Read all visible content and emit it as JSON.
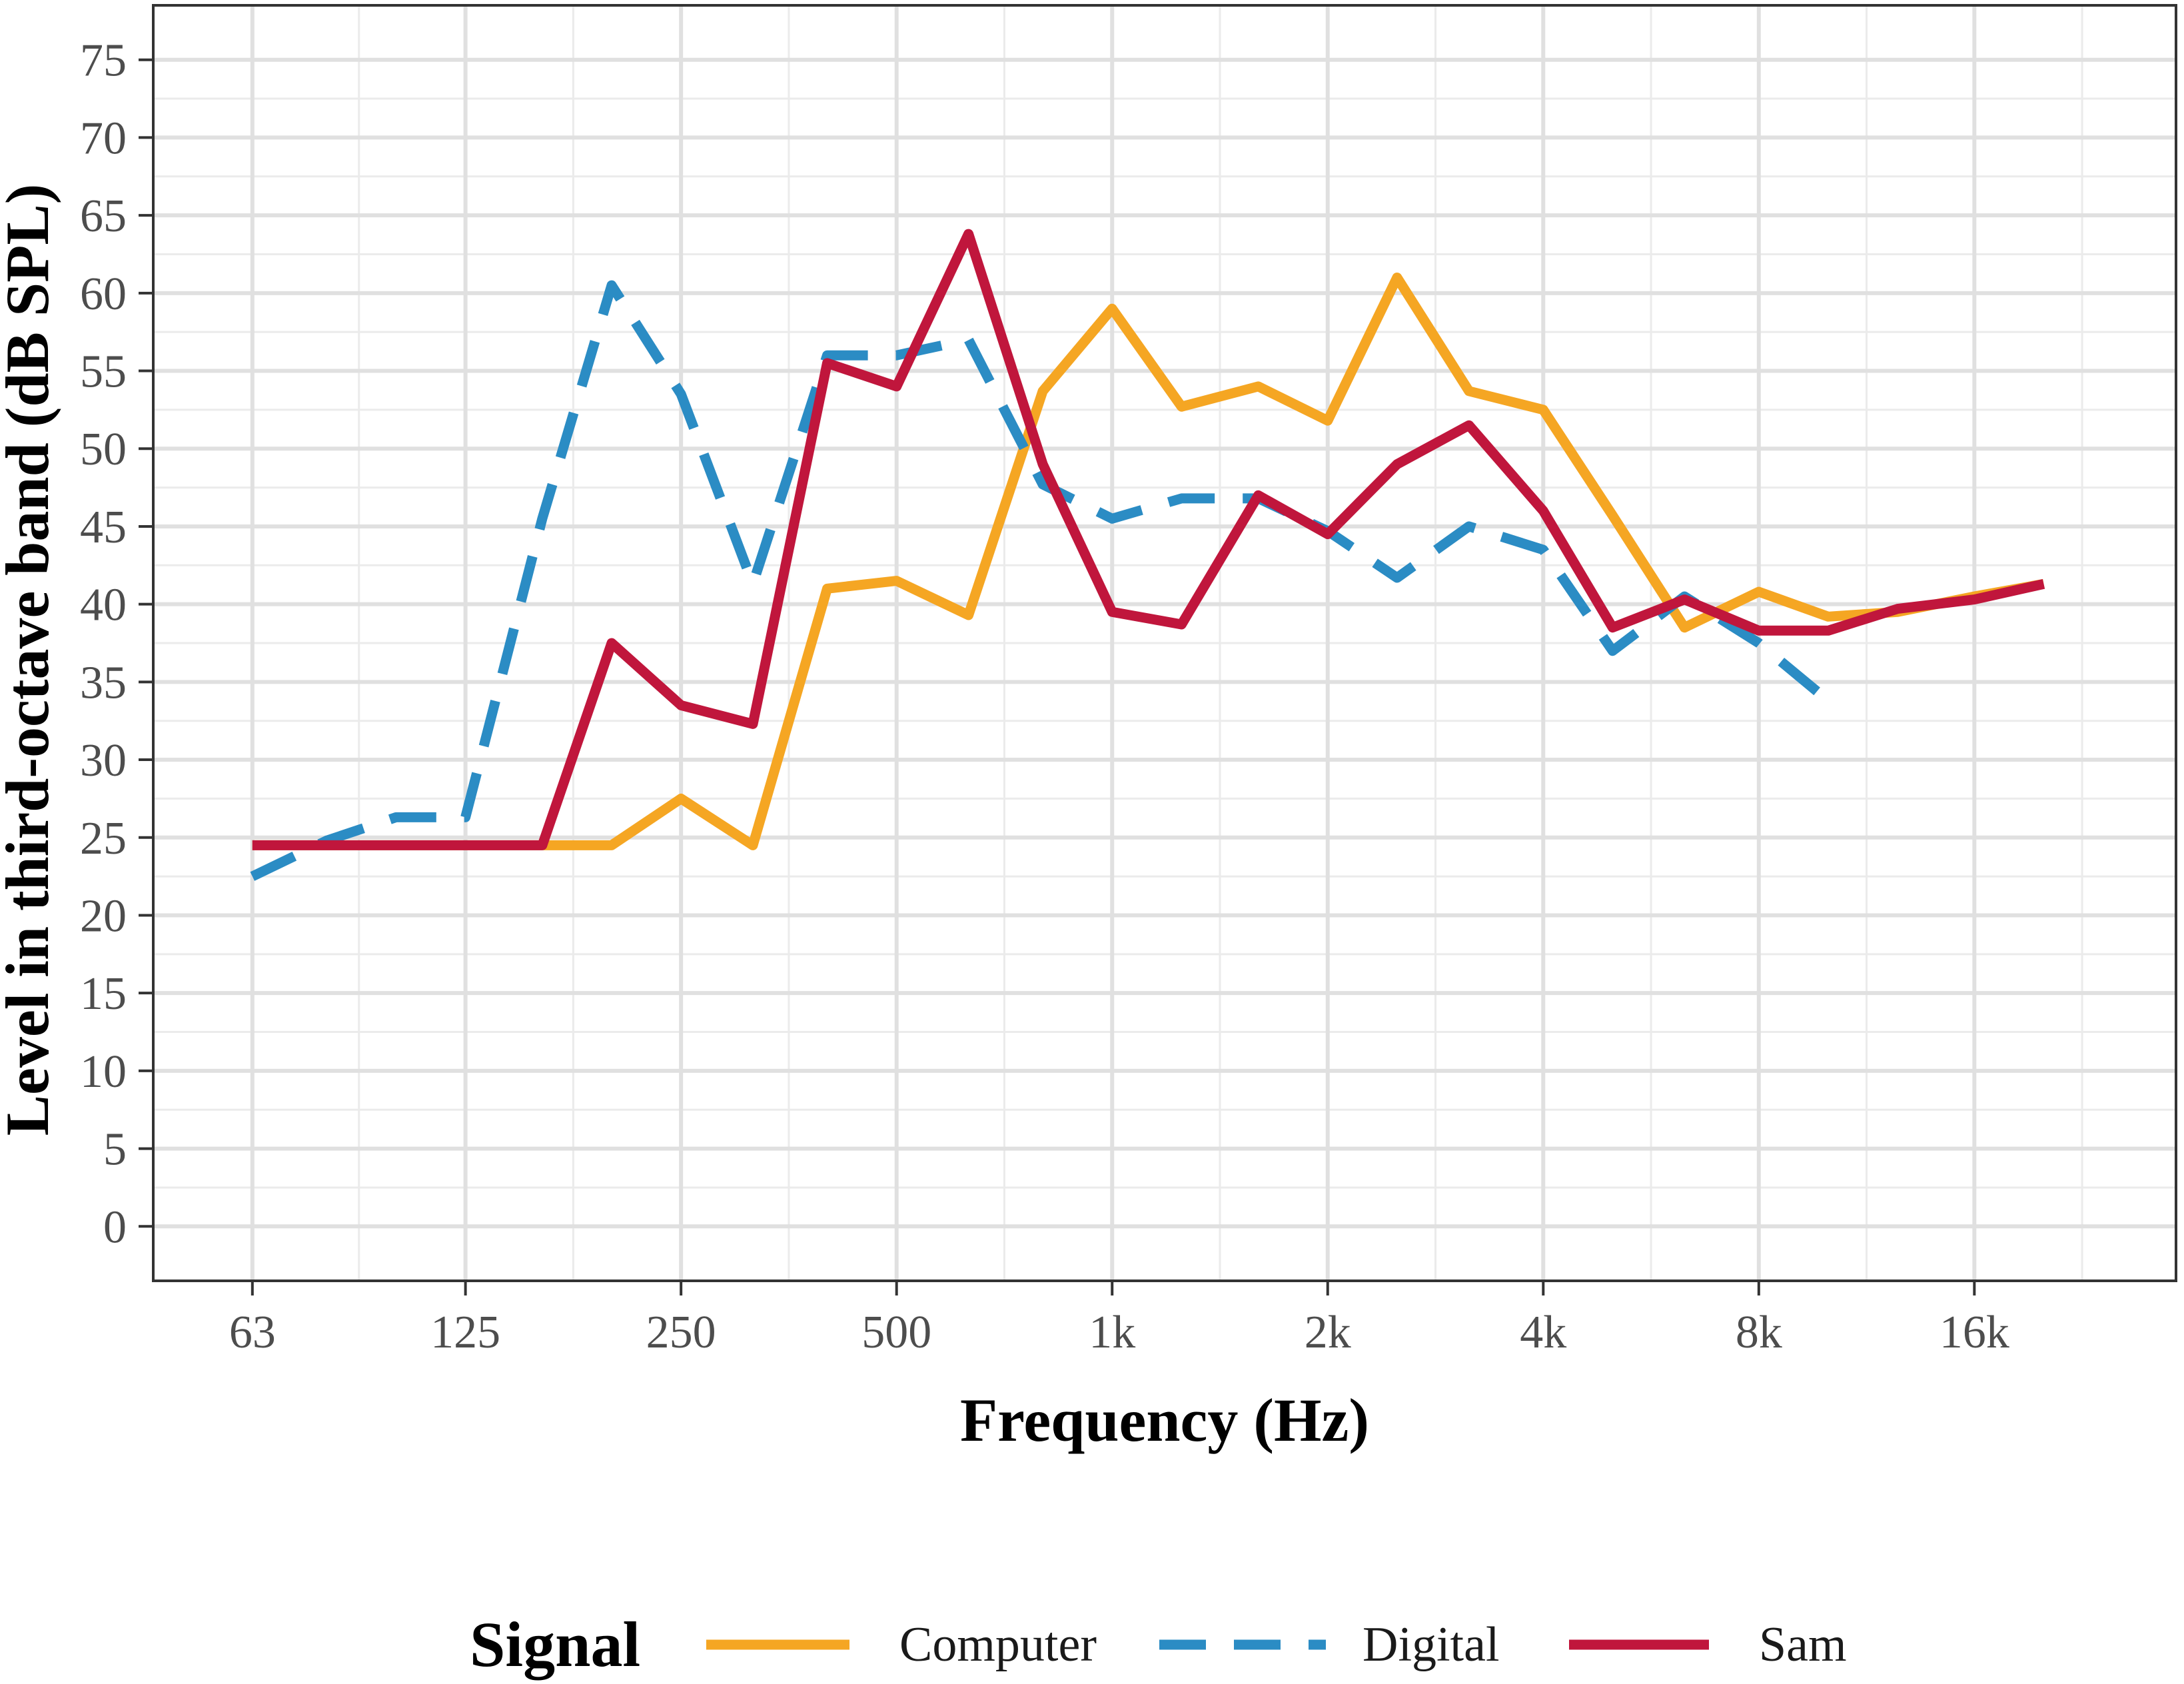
{
  "chart_data": {
    "type": "line",
    "xlabel": "Frequency (Hz)",
    "ylabel": "Level in third-octave band (dB SPL)",
    "x_scale": "log2",
    "x": [
      63,
      80,
      100,
      125,
      160,
      200,
      250,
      315,
      400,
      500,
      630,
      800,
      1000,
      1250,
      1600,
      2000,
      2500,
      3150,
      4000,
      5000,
      6300,
      8000,
      10000,
      12500,
      16000,
      20000
    ],
    "x_ticks": [
      63,
      125,
      250,
      500,
      1000,
      2000,
      4000,
      8000,
      16000
    ],
    "x_tick_labels": [
      "63",
      "125",
      "250",
      "500",
      "1k",
      "2k",
      "4k",
      "8k",
      "16k"
    ],
    "y_ticks": [
      0,
      5,
      10,
      15,
      20,
      25,
      30,
      35,
      40,
      45,
      50,
      55,
      60,
      65,
      70,
      75
    ],
    "y_tick_labels": [
      "0",
      "5",
      "10",
      "15",
      "20",
      "25",
      "30",
      "35",
      "40",
      "45",
      "50",
      "55",
      "60",
      "65",
      "70",
      "75"
    ],
    "xlim": [
      45.8,
      30600
    ],
    "ylim": [
      -3.5,
      78.5
    ],
    "grid": true,
    "legend": {
      "title": "Signal",
      "position": "bottom"
    },
    "series": [
      {
        "name": "Computer",
        "color": "#F5A623",
        "dash": "solid",
        "values": [
          24.5,
          24.5,
          24.5,
          24.5,
          24.5,
          24.5,
          27.5,
          24.5,
          41.0,
          41.5,
          39.3,
          53.7,
          59.0,
          52.7,
          54.0,
          51.8,
          61.0,
          53.7,
          52.5,
          45.7,
          38.5,
          40.8,
          39.2,
          39.5,
          40.5,
          41.3
        ]
      },
      {
        "name": "Digital",
        "color": "#2B8CC4",
        "dash": "dashed",
        "values": [
          22.5,
          24.8,
          26.3,
          26.3,
          45.5,
          60.5,
          53.5,
          41.3,
          56.0,
          56.0,
          57.0,
          47.7,
          45.5,
          46.8,
          46.8,
          44.7,
          41.7,
          45.0,
          43.5,
          37.0,
          40.5,
          37.5,
          33.8,
          null,
          null,
          null
        ]
      },
      {
        "name": "Sam",
        "color": "#C0163C",
        "dash": "solid",
        "values": [
          24.5,
          24.5,
          24.5,
          24.5,
          24.5,
          37.5,
          33.5,
          32.3,
          55.5,
          54.0,
          63.8,
          49.0,
          39.5,
          38.7,
          47.0,
          44.5,
          49.0,
          51.5,
          46.0,
          38.5,
          40.3,
          38.3,
          38.3,
          39.7,
          40.3,
          41.3
        ]
      }
    ]
  }
}
